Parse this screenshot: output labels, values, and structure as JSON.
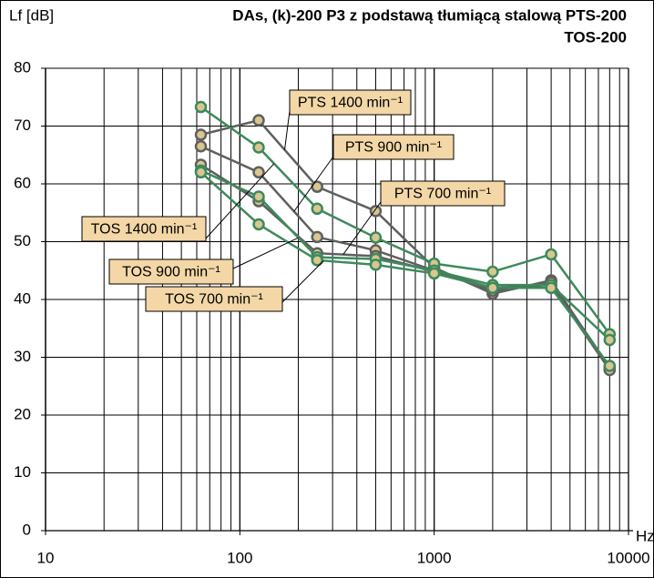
{
  "chart_data": {
    "type": "line",
    "title": "DAs, (k)-200 P3 z podstawą tłumiącą stalową PTS-200",
    "subtitle": "TOS-200",
    "y_label": "Lf [dB]",
    "x_label": "Hz",
    "x": [
      63,
      125,
      250,
      500,
      1000,
      2000,
      4000,
      8000
    ],
    "xlim": [
      10,
      10000
    ],
    "xticks": [
      10,
      100,
      1000,
      10000
    ],
    "x_log": true,
    "ylim": [
      0,
      80
    ],
    "yticks": [
      0,
      10,
      20,
      30,
      40,
      50,
      60,
      70,
      80
    ],
    "grid": true,
    "series": [
      {
        "name": "PTS 1400 min⁻¹",
        "color": "#5f5f5f",
        "values": [
          68.5,
          71,
          59.5,
          55.3,
          45.5,
          41,
          43.3,
          28
        ]
      },
      {
        "name": "PTS 900 min⁻¹",
        "color": "#5f5f5f",
        "values": [
          66.5,
          62,
          50.8,
          48.5,
          45,
          41.5,
          43,
          28.3
        ]
      },
      {
        "name": "PTS 700 min⁻¹",
        "color": "#5f5f5f",
        "values": [
          63.3,
          57,
          48,
          47.5,
          44.8,
          42,
          42.5,
          27.8
        ]
      },
      {
        "name": "TOS 1400 min⁻¹",
        "color": "#3d8a5c",
        "values": [
          73.3,
          66.3,
          55.7,
          50.7,
          46.2,
          44.8,
          47.8,
          34
        ]
      },
      {
        "name": "TOS 900 min⁻¹",
        "color": "#3d8a5c",
        "values": [
          62.3,
          57.8,
          47.3,
          47,
          45,
          42.5,
          42.5,
          33
        ]
      },
      {
        "name": "TOS 700 min⁻¹",
        "color": "#3d8a5c",
        "values": [
          62,
          53,
          46.8,
          46,
          44.5,
          42,
          42,
          28.5
        ]
      }
    ]
  }
}
